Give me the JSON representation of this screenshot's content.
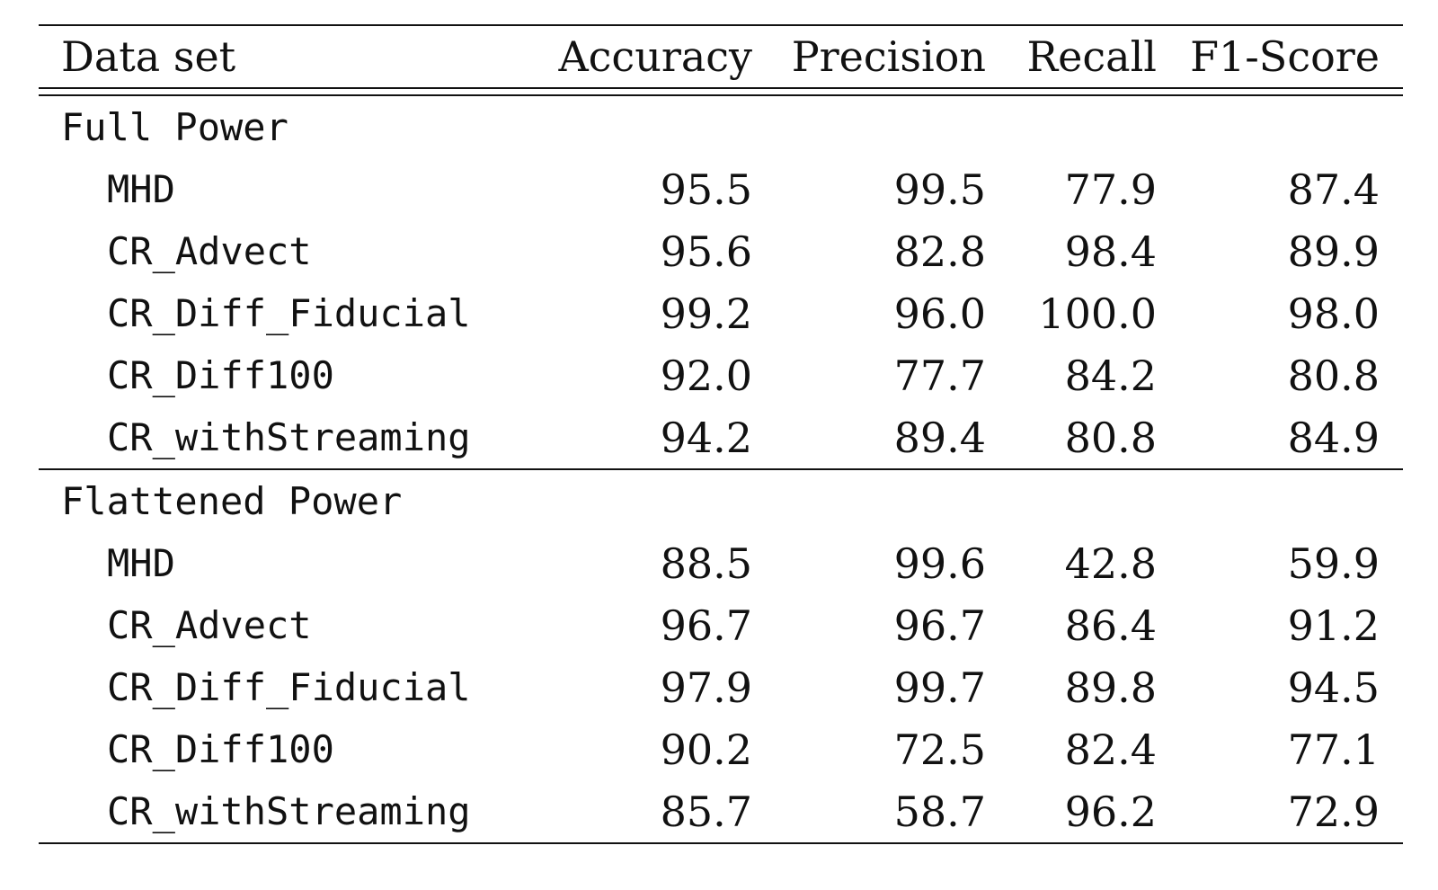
{
  "table": {
    "headers": [
      "Data set",
      "Accuracy",
      "Precision",
      "Recall",
      "F1-Score"
    ],
    "sections": [
      {
        "title": "Full Power",
        "rows": [
          {
            "name": "MHD",
            "values": [
              "95.5",
              "99.5",
              "77.9",
              "87.4"
            ]
          },
          {
            "name": "CR_Advect",
            "values": [
              "95.6",
              "82.8",
              "98.4",
              "89.9"
            ]
          },
          {
            "name": "CR_Diff_Fiducial",
            "values": [
              "99.2",
              "96.0",
              "100.0",
              "98.0"
            ]
          },
          {
            "name": "CR_Diff100",
            "values": [
              "92.0",
              "77.7",
              "84.2",
              "80.8"
            ]
          },
          {
            "name": "CR_withStreaming",
            "values": [
              "94.2",
              "89.4",
              "80.8",
              "84.9"
            ]
          }
        ]
      },
      {
        "title": "Flattened Power",
        "rows": [
          {
            "name": "MHD",
            "values": [
              "88.5",
              "99.6",
              "42.8",
              "59.9"
            ]
          },
          {
            "name": "CR_Advect",
            "values": [
              "96.7",
              "96.7",
              "86.4",
              "91.2"
            ]
          },
          {
            "name": "CR_Diff_Fiducial",
            "values": [
              "97.9",
              "99.7",
              "89.8",
              "94.5"
            ]
          },
          {
            "name": "CR_Diff100",
            "values": [
              "90.2",
              "72.5",
              "82.4",
              "77.1"
            ]
          },
          {
            "name": "CR_withStreaming",
            "values": [
              "85.7",
              "58.7",
              "96.2",
              "72.9"
            ]
          }
        ]
      }
    ]
  }
}
